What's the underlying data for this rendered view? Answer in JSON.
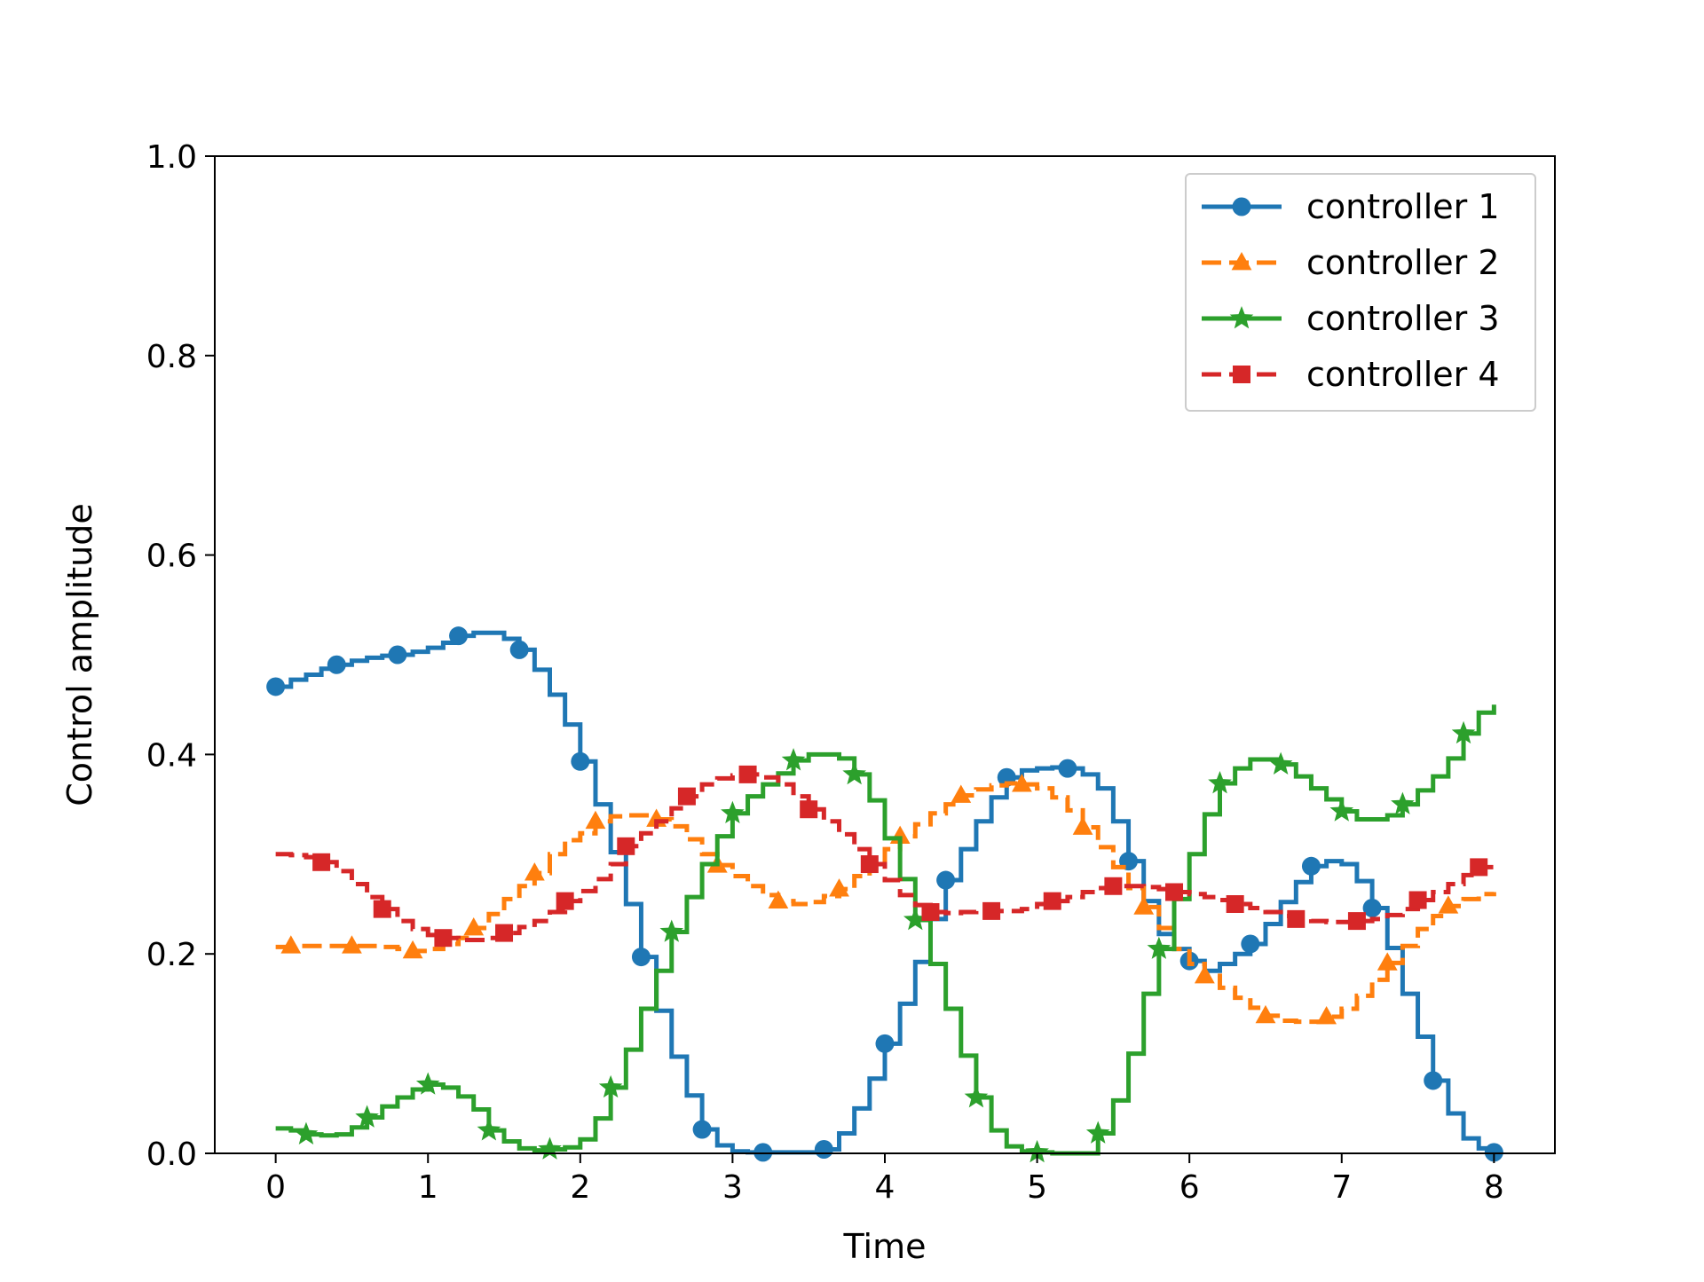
{
  "chart_data": {
    "type": "line",
    "step": true,
    "title": "",
    "xlabel": "Time",
    "ylabel": "Control amplitude",
    "xlim": [
      -0.4,
      8.4
    ],
    "ylim": [
      0.0,
      1.0
    ],
    "x_ticks": [
      0,
      1,
      2,
      3,
      4,
      5,
      6,
      7,
      8
    ],
    "x_tick_labels": [
      "0",
      "1",
      "2",
      "3",
      "4",
      "5",
      "6",
      "7",
      "8"
    ],
    "y_ticks": [
      0.0,
      0.2,
      0.4,
      0.6,
      0.8,
      1.0
    ],
    "y_tick_labels": [
      "0.0",
      "0.2",
      "0.4",
      "0.6",
      "0.8",
      "1.0"
    ],
    "grid": false,
    "legend_position": "top-right",
    "series": [
      {
        "name": "controller 1",
        "color": "#1f77b4",
        "line_style": "solid",
        "marker": "circle",
        "x": [
          0,
          0.1,
          0.2,
          0.3,
          0.4,
          0.5,
          0.6,
          0.7,
          0.8,
          0.9,
          1.0,
          1.1,
          1.2,
          1.3,
          1.4,
          1.5,
          1.6,
          1.7,
          1.8,
          1.9,
          2.0,
          2.1,
          2.2,
          2.3,
          2.4,
          2.5,
          2.6,
          2.7,
          2.8,
          2.9,
          3.0,
          3.1,
          3.2,
          3.3,
          3.4,
          3.5,
          3.6,
          3.7,
          3.8,
          3.9,
          4.0,
          4.1,
          4.2,
          4.3,
          4.4,
          4.5,
          4.6,
          4.7,
          4.8,
          4.9,
          5.0,
          5.1,
          5.2,
          5.3,
          5.4,
          5.5,
          5.6,
          5.7,
          5.8,
          5.9,
          6.0,
          6.1,
          6.2,
          6.3,
          6.4,
          6.5,
          6.6,
          6.7,
          6.8,
          6.9,
          7.0,
          7.1,
          7.2,
          7.3,
          7.4,
          7.5,
          7.6,
          7.7,
          7.8,
          7.9,
          8.0
        ],
        "y": [
          0.468,
          0.475,
          0.48,
          0.486,
          0.49,
          0.494,
          0.497,
          0.499,
          0.5,
          0.503,
          0.507,
          0.512,
          0.519,
          0.522,
          0.522,
          0.516,
          0.505,
          0.485,
          0.46,
          0.43,
          0.393,
          0.35,
          0.302,
          0.25,
          0.197,
          0.143,
          0.097,
          0.058,
          0.024,
          0.008,
          0.002,
          0.001,
          0.001,
          0.001,
          0.001,
          0.001,
          0.004,
          0.02,
          0.045,
          0.075,
          0.11,
          0.15,
          0.192,
          0.235,
          0.274,
          0.305,
          0.333,
          0.357,
          0.377,
          0.384,
          0.386,
          0.387,
          0.386,
          0.38,
          0.366,
          0.333,
          0.293,
          0.253,
          0.22,
          0.205,
          0.193,
          0.183,
          0.19,
          0.2,
          0.21,
          0.23,
          0.252,
          0.272,
          0.288,
          0.293,
          0.29,
          0.273,
          0.246,
          0.206,
          0.16,
          0.117,
          0.073,
          0.04,
          0.015,
          0.005,
          0.001
        ],
        "marker_x": [
          0,
          0.4,
          0.8,
          1.2,
          1.6,
          2.0,
          2.4,
          2.8,
          3.2,
          3.6,
          4.0,
          4.4,
          4.8,
          5.2,
          5.6,
          6.0,
          6.4,
          6.8,
          7.2,
          7.6,
          8.0
        ]
      },
      {
        "name": "controller 2",
        "color": "#ff7f0e",
        "line_style": "dashed",
        "marker": "triangle",
        "x": [
          0,
          0.1,
          0.2,
          0.3,
          0.4,
          0.5,
          0.6,
          0.7,
          0.8,
          0.9,
          1.0,
          1.1,
          1.2,
          1.3,
          1.4,
          1.5,
          1.6,
          1.7,
          1.8,
          1.9,
          2.0,
          2.1,
          2.2,
          2.3,
          2.4,
          2.5,
          2.6,
          2.7,
          2.8,
          2.9,
          3.0,
          3.1,
          3.2,
          3.3,
          3.4,
          3.5,
          3.6,
          3.7,
          3.8,
          3.9,
          4.0,
          4.1,
          4.2,
          4.3,
          4.4,
          4.5,
          4.6,
          4.7,
          4.8,
          4.9,
          5.0,
          5.1,
          5.2,
          5.3,
          5.4,
          5.5,
          5.6,
          5.7,
          5.8,
          5.9,
          6.0,
          6.1,
          6.2,
          6.3,
          6.4,
          6.5,
          6.6,
          6.7,
          6.8,
          6.9,
          7.0,
          7.1,
          7.2,
          7.3,
          7.4,
          7.5,
          7.6,
          7.7,
          7.8,
          7.9,
          8.0
        ],
        "y": [
          0.207,
          0.208,
          0.208,
          0.208,
          0.208,
          0.208,
          0.208,
          0.207,
          0.205,
          0.203,
          0.205,
          0.21,
          0.216,
          0.226,
          0.24,
          0.255,
          0.268,
          0.281,
          0.3,
          0.314,
          0.321,
          0.333,
          0.338,
          0.339,
          0.339,
          0.335,
          0.328,
          0.315,
          0.3,
          0.289,
          0.278,
          0.268,
          0.259,
          0.253,
          0.25,
          0.252,
          0.258,
          0.265,
          0.278,
          0.292,
          0.305,
          0.318,
          0.33,
          0.341,
          0.35,
          0.359,
          0.365,
          0.369,
          0.371,
          0.37,
          0.366,
          0.357,
          0.344,
          0.327,
          0.307,
          0.287,
          0.266,
          0.247,
          0.226,
          0.205,
          0.19,
          0.178,
          0.166,
          0.156,
          0.146,
          0.138,
          0.133,
          0.132,
          0.132,
          0.137,
          0.145,
          0.158,
          0.174,
          0.191,
          0.208,
          0.225,
          0.238,
          0.248,
          0.255,
          0.26,
          0.262
        ],
        "marker_x": [
          0.1,
          0.5,
          0.9,
          1.3,
          1.7,
          2.1,
          2.5,
          2.9,
          3.3,
          3.7,
          4.1,
          4.5,
          4.9,
          5.3,
          5.7,
          6.1,
          6.5,
          6.9,
          7.3,
          7.7
        ]
      },
      {
        "name": "controller 3",
        "color": "#2ca02c",
        "line_style": "solid",
        "marker": "star",
        "x": [
          0,
          0.1,
          0.2,
          0.3,
          0.4,
          0.5,
          0.6,
          0.7,
          0.8,
          0.9,
          1.0,
          1.1,
          1.2,
          1.3,
          1.4,
          1.5,
          1.6,
          1.7,
          1.8,
          1.9,
          2.0,
          2.1,
          2.2,
          2.3,
          2.4,
          2.5,
          2.6,
          2.7,
          2.8,
          2.9,
          3.0,
          3.1,
          3.2,
          3.3,
          3.4,
          3.5,
          3.6,
          3.7,
          3.8,
          3.9,
          4.0,
          4.1,
          4.2,
          4.3,
          4.4,
          4.5,
          4.6,
          4.7,
          4.8,
          4.9,
          5.0,
          5.1,
          5.2,
          5.3,
          5.4,
          5.5,
          5.6,
          5.7,
          5.8,
          5.9,
          6.0,
          6.1,
          6.2,
          6.3,
          6.4,
          6.5,
          6.6,
          6.7,
          6.8,
          6.9,
          7.0,
          7.1,
          7.2,
          7.3,
          7.4,
          7.5,
          7.6,
          7.7,
          7.8,
          7.9,
          8.0
        ],
        "y": [
          0.025,
          0.023,
          0.019,
          0.018,
          0.019,
          0.026,
          0.036,
          0.047,
          0.056,
          0.064,
          0.069,
          0.066,
          0.057,
          0.044,
          0.023,
          0.012,
          0.005,
          0.003,
          0.004,
          0.006,
          0.014,
          0.035,
          0.066,
          0.104,
          0.145,
          0.183,
          0.222,
          0.257,
          0.29,
          0.318,
          0.341,
          0.358,
          0.37,
          0.381,
          0.394,
          0.4,
          0.4,
          0.396,
          0.38,
          0.354,
          0.316,
          0.275,
          0.234,
          0.19,
          0.145,
          0.098,
          0.056,
          0.023,
          0.007,
          0.002,
          0.001,
          0.0,
          0.0,
          0.0,
          0.02,
          0.053,
          0.1,
          0.16,
          0.205,
          0.255,
          0.3,
          0.34,
          0.371,
          0.386,
          0.395,
          0.395,
          0.39,
          0.378,
          0.366,
          0.355,
          0.343,
          0.335,
          0.335,
          0.339,
          0.35,
          0.364,
          0.378,
          0.396,
          0.421,
          0.442,
          0.45
        ],
        "marker_x": [
          0.2,
          0.6,
          1.0,
          1.4,
          1.8,
          2.2,
          2.6,
          3.0,
          3.4,
          3.8,
          4.2,
          4.6,
          5.0,
          5.4,
          5.8,
          6.2,
          6.6,
          7.0,
          7.4,
          7.8
        ]
      },
      {
        "name": "controller 4",
        "color": "#d62728",
        "line_style": "dashed",
        "marker": "square",
        "x": [
          0,
          0.1,
          0.2,
          0.3,
          0.4,
          0.5,
          0.6,
          0.7,
          0.8,
          0.9,
          1.0,
          1.1,
          1.2,
          1.3,
          1.4,
          1.5,
          1.6,
          1.7,
          1.8,
          1.9,
          2.0,
          2.1,
          2.2,
          2.3,
          2.4,
          2.5,
          2.6,
          2.7,
          2.8,
          2.9,
          3.0,
          3.1,
          3.2,
          3.3,
          3.4,
          3.5,
          3.6,
          3.7,
          3.8,
          3.9,
          4.0,
          4.1,
          4.2,
          4.3,
          4.4,
          4.5,
          4.6,
          4.7,
          4.8,
          4.9,
          5.0,
          5.1,
          5.2,
          5.3,
          5.4,
          5.5,
          5.6,
          5.7,
          5.8,
          5.9,
          6.0,
          6.1,
          6.2,
          6.3,
          6.4,
          6.5,
          6.6,
          6.7,
          6.8,
          6.9,
          7.0,
          7.1,
          7.2,
          7.3,
          7.4,
          7.5,
          7.6,
          7.7,
          7.8,
          7.9,
          8.0
        ],
        "y": [
          0.3,
          0.299,
          0.297,
          0.292,
          0.283,
          0.27,
          0.257,
          0.245,
          0.233,
          0.225,
          0.219,
          0.216,
          0.214,
          0.214,
          0.216,
          0.221,
          0.227,
          0.233,
          0.242,
          0.253,
          0.263,
          0.275,
          0.29,
          0.308,
          0.321,
          0.333,
          0.346,
          0.358,
          0.37,
          0.376,
          0.379,
          0.38,
          0.377,
          0.37,
          0.358,
          0.345,
          0.333,
          0.32,
          0.305,
          0.29,
          0.274,
          0.259,
          0.249,
          0.242,
          0.241,
          0.242,
          0.243,
          0.243,
          0.243,
          0.245,
          0.25,
          0.253,
          0.257,
          0.262,
          0.266,
          0.268,
          0.268,
          0.267,
          0.265,
          0.262,
          0.26,
          0.257,
          0.254,
          0.25,
          0.246,
          0.242,
          0.238,
          0.235,
          0.233,
          0.232,
          0.232,
          0.233,
          0.235,
          0.239,
          0.245,
          0.254,
          0.262,
          0.27,
          0.279,
          0.287,
          0.29
        ],
        "marker_x": [
          0.3,
          0.7,
          1.1,
          1.5,
          1.9,
          2.3,
          2.7,
          3.1,
          3.5,
          3.9,
          4.3,
          4.7,
          5.1,
          5.5,
          5.9,
          6.3,
          6.7,
          7.1,
          7.5,
          7.9
        ]
      }
    ]
  }
}
